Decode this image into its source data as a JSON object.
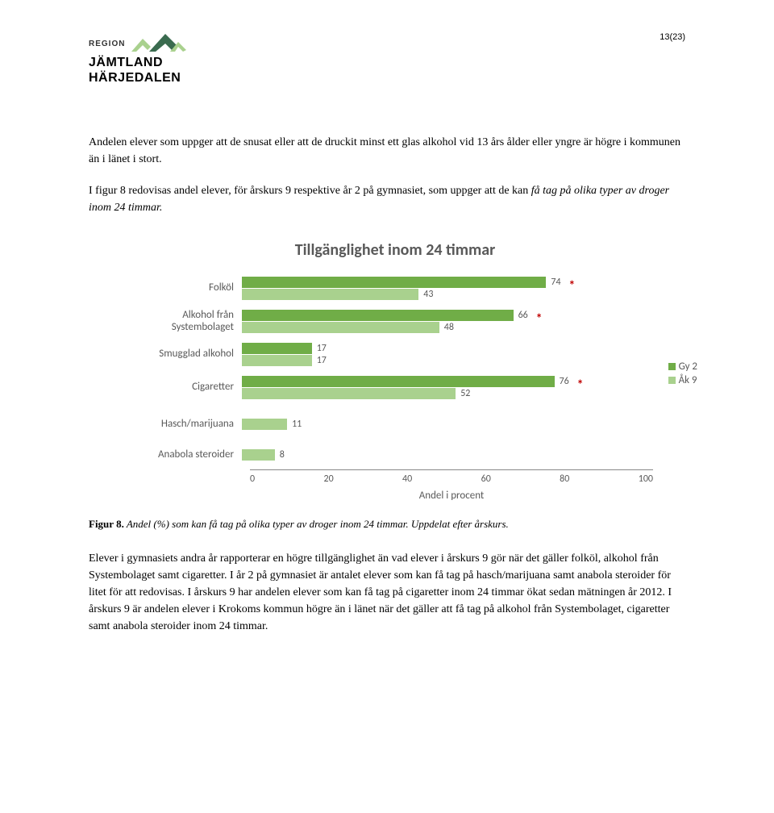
{
  "header": {
    "logo_region": "REGION",
    "logo_name1": "JÄMTLAND",
    "logo_name2": "HÄRJEDALEN",
    "page_num": "13(23)"
  },
  "para1": "Andelen elever som uppger att de snusat eller att de druckit minst ett glas alkohol vid 13 års ålder eller yngre är högre i kommunen än i länet i stort.",
  "para2a": "I figur 8 redovisas andel elever, för årskurs 9 respektive år 2 på gymnasiet, som uppger att de kan ",
  "para2b": "få tag på olika typer av droger inom 24 timmar.",
  "chart": {
    "title": "Tillgänglighet inom 24 timmar",
    "axis_label": "Andel i procent",
    "xmax": 100,
    "ticks": [
      "0",
      "20",
      "40",
      "60",
      "80",
      "100"
    ],
    "colors": {
      "gy2": "#70ad47",
      "ak9": "#a9d18e",
      "text": "#595959",
      "star": "#c00000"
    },
    "legend": [
      {
        "label": "Gy 2",
        "color": "#70ad47"
      },
      {
        "label": "Åk 9",
        "color": "#a9d18e"
      }
    ],
    "cats": [
      {
        "label": "Folköl",
        "gy2": 74,
        "ak9": 43,
        "star": true
      },
      {
        "label": "Alkohol från Systembolaget",
        "gy2": 66,
        "ak9": 48,
        "star": true
      },
      {
        "label": "Smugglad alkohol",
        "gy2": 17,
        "ak9": 17,
        "star": false
      },
      {
        "label": "Cigaretter",
        "gy2": 76,
        "ak9": 52,
        "star": true
      },
      {
        "label": "Hasch/marijuana",
        "gy2": null,
        "ak9": 11,
        "star": false
      },
      {
        "label": "Anabola steroider",
        "gy2": null,
        "ak9": 8,
        "star": false
      }
    ]
  },
  "caption_a": "Figur 8.",
  "caption_b": " Andel (%) som kan få tag på olika typer av droger inom 24 timmar. Uppdelat efter årskurs.",
  "para3": "Elever i gymnasiets andra år rapporterar en högre tillgänglighet än vad elever i årskurs 9 gör när det gäller folköl, alkohol från Systembolaget samt cigaretter. I år 2 på gymnasiet är antalet elever som kan få tag på hasch/marijuana samt anabola steroider för litet för att redovisas. I årskurs 9 har andelen elever som kan få tag på cigaretter inom 24 timmar ökat sedan mätningen år 2012. I årskurs 9 är andelen elever i Krokoms kommun högre än i länet när det gäller att få tag på alkohol från Systembolaget, cigaretter samt anabola steroider inom 24 timmar."
}
